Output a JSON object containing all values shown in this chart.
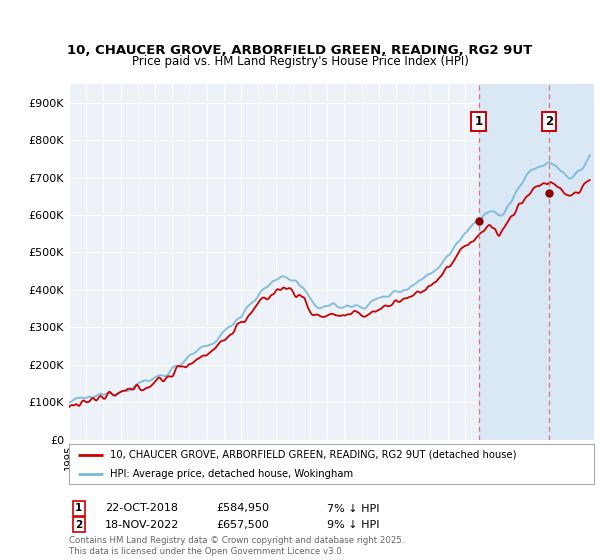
{
  "title": "10, CHAUCER GROVE, ARBORFIELD GREEN, READING, RG2 9UT",
  "subtitle": "Price paid vs. HM Land Registry's House Price Index (HPI)",
  "ylabel_ticks": [
    "£0",
    "£100K",
    "£200K",
    "£300K",
    "£400K",
    "£500K",
    "£600K",
    "£700K",
    "£800K",
    "£900K"
  ],
  "ytick_values": [
    0,
    100000,
    200000,
    300000,
    400000,
    500000,
    600000,
    700000,
    800000,
    900000
  ],
  "ylim": [
    0,
    950000
  ],
  "xlim_start": 1995,
  "xlim_end": 2025.5,
  "hpi_color": "#7ab8d8",
  "price_color": "#cc0000",
  "marker1_date": 2018.8,
  "marker1_price": 584950,
  "marker2_date": 2022.88,
  "marker2_price": 657500,
  "legend_line1": "10, CHAUCER GROVE, ARBORFIELD GREEN, READING, RG2 9UT (detached house)",
  "legend_line2": "HPI: Average price, detached house, Wokingham",
  "annotation1_date": "22-OCT-2018",
  "annotation1_price": "£584,950",
  "annotation1_pct": "7% ↓ HPI",
  "annotation2_date": "18-NOV-2022",
  "annotation2_price": "£657,500",
  "annotation2_pct": "9% ↓ HPI",
  "footer": "Contains HM Land Registry data © Crown copyright and database right 2025.\nThis data is licensed under the Open Government Licence v3.0.",
  "bg_color": "#ffffff",
  "plot_bg_color": "#edf2f9",
  "grid_color": "#ffffff",
  "shade_color": "#dae8f5"
}
